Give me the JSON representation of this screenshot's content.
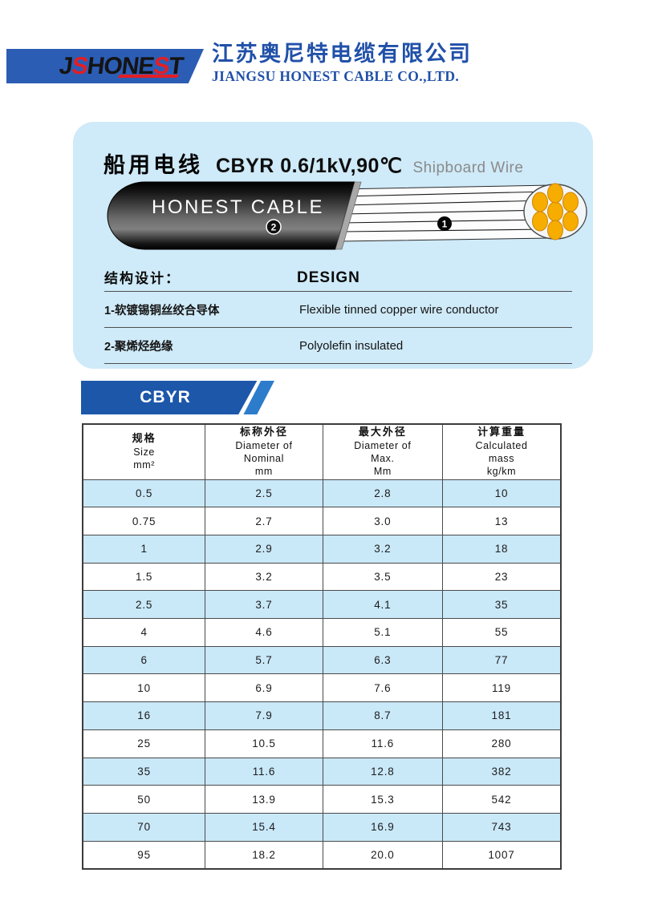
{
  "colors": {
    "brand_blue": "#2c5db4",
    "accent_red": "#e31e24",
    "company_text_blue": "#2050a8",
    "card_bg": "#cfeaf8",
    "banner_blue": "#1d57aa",
    "banner_accent_blue": "#2d7ccc",
    "table_row_blue": "#c9e8f8",
    "strand_orange": "#f7ac00"
  },
  "header": {
    "logo_text": "JSHONEST",
    "company_name_zh": "江苏奥尼特电缆有限公司",
    "company_name_en": "JIANGSU HONEST CABLE CO.,LTD."
  },
  "product": {
    "title_zh": "船用电线",
    "model": "CBYR 0.6/1kV,90℃",
    "title_en": "Shipboard Wire",
    "cable_label": "HONEST CABLE",
    "marker_conductor": "1",
    "marker_insulation": "2"
  },
  "design": {
    "heading_zh": "结构设计：",
    "heading_en": "DESIGN",
    "rows": [
      {
        "zh": "1-软镀锡铜丝绞合导体",
        "en": "Flexible tinned copper wire conductor"
      },
      {
        "zh": "2-聚烯烃绝缘",
        "en": "Polyolefin insulated"
      }
    ]
  },
  "series_tab": {
    "label": "CBYR"
  },
  "table": {
    "columns": [
      {
        "lines": [
          "规格",
          "Size",
          "mm²"
        ]
      },
      {
        "lines": [
          "标称外径",
          "Diameter of",
          "Nominal",
          "mm"
        ]
      },
      {
        "lines": [
          "最大外径",
          "Diameter of",
          "Max.",
          "Mm"
        ]
      },
      {
        "lines": [
          "计算重量",
          "Calculated",
          "mass",
          "kg/km"
        ]
      }
    ],
    "rows": [
      [
        "0.5",
        "2.5",
        "2.8",
        "10"
      ],
      [
        "0.75",
        "2.7",
        "3.0",
        "13"
      ],
      [
        "1",
        "2.9",
        "3.2",
        "18"
      ],
      [
        "1.5",
        "3.2",
        "3.5",
        "23"
      ],
      [
        "2.5",
        "3.7",
        "4.1",
        "35"
      ],
      [
        "4",
        "4.6",
        "5.1",
        "55"
      ],
      [
        "6",
        "5.7",
        "6.3",
        "77"
      ],
      [
        "10",
        "6.9",
        "7.6",
        "119"
      ],
      [
        "16",
        "7.9",
        "8.7",
        "181"
      ],
      [
        "25",
        "10.5",
        "11.6",
        "280"
      ],
      [
        "35",
        "11.6",
        "12.8",
        "382"
      ],
      [
        "50",
        "13.9",
        "15.3",
        "542"
      ],
      [
        "70",
        "15.4",
        "16.9",
        "743"
      ],
      [
        "95",
        "18.2",
        "20.0",
        "1007"
      ]
    ]
  }
}
